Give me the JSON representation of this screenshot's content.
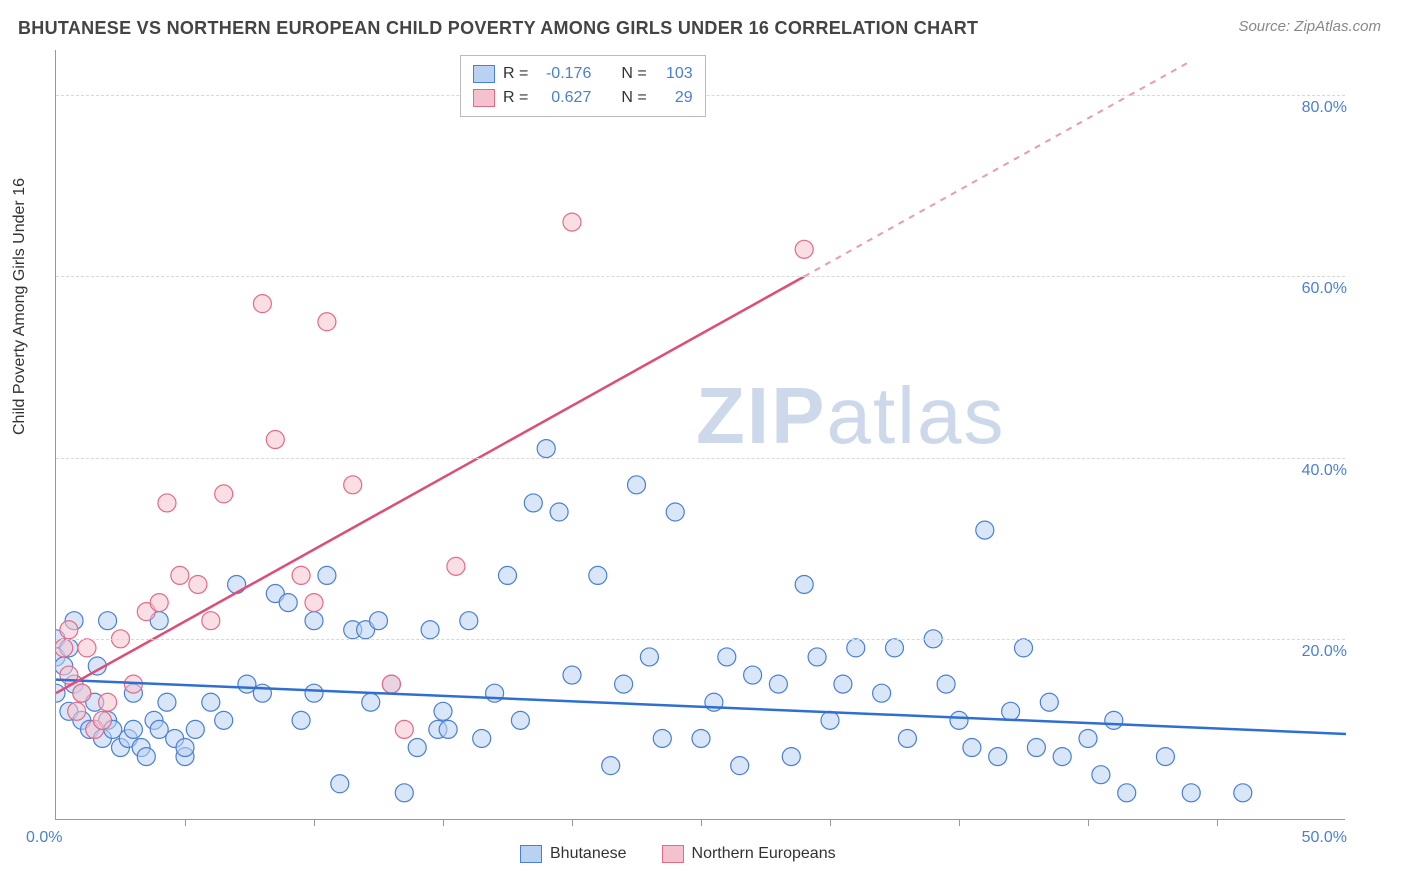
{
  "title": "BHUTANESE VS NORTHERN EUROPEAN CHILD POVERTY AMONG GIRLS UNDER 16 CORRELATION CHART",
  "source": "Source: ZipAtlas.com",
  "y_axis_title": "Child Poverty Among Girls Under 16",
  "watermark_bold": "ZIP",
  "watermark_light": "atlas",
  "chart": {
    "type": "scatter",
    "xlim": [
      0,
      50
    ],
    "ylim": [
      0,
      85
    ],
    "x_tick_labels": [
      "0.0%",
      "50.0%"
    ],
    "x_minor_ticks": [
      5,
      10,
      15,
      20,
      25,
      30,
      35,
      40,
      45
    ],
    "y_gridlines": [
      20,
      40,
      60,
      80
    ],
    "y_tick_labels": [
      "20.0%",
      "40.0%",
      "60.0%",
      "80.0%"
    ],
    "background_color": "#ffffff",
    "grid_color": "#d8d8d8",
    "axis_color": "#999999",
    "label_color": "#4a7fd6",
    "series": [
      {
        "name": "Bhutanese",
        "fill": "#b9d2f1",
        "stroke": "#4a7fd6",
        "fill_opacity": 0.55,
        "R": "-0.176",
        "N": "103",
        "trend": {
          "x1": 0,
          "y1": 15.5,
          "x2": 50,
          "y2": 9.5,
          "color": "#2f6fd0",
          "width": 2.5,
          "dash": ""
        },
        "points": [
          [
            0,
            14
          ],
          [
            0,
            18
          ],
          [
            0,
            20
          ],
          [
            0.3,
            17
          ],
          [
            0.5,
            12
          ],
          [
            0.5,
            19
          ],
          [
            0.7,
            15
          ],
          [
            0.7,
            22
          ],
          [
            1,
            11
          ],
          [
            1,
            14
          ],
          [
            1.3,
            10
          ],
          [
            1.5,
            13
          ],
          [
            1.6,
            17
          ],
          [
            1.8,
            9
          ],
          [
            2,
            11
          ],
          [
            2,
            22
          ],
          [
            2.2,
            10
          ],
          [
            2.5,
            8
          ],
          [
            2.8,
            9
          ],
          [
            3,
            10
          ],
          [
            3,
            14
          ],
          [
            3.3,
            8
          ],
          [
            3.5,
            7
          ],
          [
            3.8,
            11
          ],
          [
            4,
            10
          ],
          [
            4,
            22
          ],
          [
            4.3,
            13
          ],
          [
            4.6,
            9
          ],
          [
            5,
            7
          ],
          [
            5,
            8
          ],
          [
            5.4,
            10
          ],
          [
            6,
            13
          ],
          [
            6.5,
            11
          ],
          [
            7,
            26
          ],
          [
            7.4,
            15
          ],
          [
            8,
            14
          ],
          [
            8.5,
            25
          ],
          [
            9,
            24
          ],
          [
            9.5,
            11
          ],
          [
            10,
            14
          ],
          [
            10,
            22
          ],
          [
            10.5,
            27
          ],
          [
            11,
            4
          ],
          [
            11.5,
            21
          ],
          [
            12,
            21
          ],
          [
            12.2,
            13
          ],
          [
            12.5,
            22
          ],
          [
            13,
            15
          ],
          [
            13.5,
            3
          ],
          [
            14,
            8
          ],
          [
            14.5,
            21
          ],
          [
            14.8,
            10
          ],
          [
            15,
            12
          ],
          [
            15.2,
            10
          ],
          [
            16,
            22
          ],
          [
            16.5,
            9
          ],
          [
            17,
            14
          ],
          [
            17.5,
            27
          ],
          [
            18,
            11
          ],
          [
            18.5,
            35
          ],
          [
            19,
            41
          ],
          [
            19.5,
            34
          ],
          [
            20,
            16
          ],
          [
            21,
            27
          ],
          [
            21.5,
            6
          ],
          [
            22,
            15
          ],
          [
            22.5,
            37
          ],
          [
            23,
            18
          ],
          [
            23.5,
            9
          ],
          [
            24,
            34
          ],
          [
            25,
            9
          ],
          [
            25.5,
            13
          ],
          [
            26,
            18
          ],
          [
            26.5,
            6
          ],
          [
            27,
            16
          ],
          [
            28,
            15
          ],
          [
            28.5,
            7
          ],
          [
            29,
            26
          ],
          [
            29.5,
            18
          ],
          [
            30,
            11
          ],
          [
            30.5,
            15
          ],
          [
            31,
            19
          ],
          [
            32,
            14
          ],
          [
            32.5,
            19
          ],
          [
            33,
            9
          ],
          [
            34,
            20
          ],
          [
            34.5,
            15
          ],
          [
            35,
            11
          ],
          [
            35.5,
            8
          ],
          [
            36,
            32
          ],
          [
            36.5,
            7
          ],
          [
            37,
            12
          ],
          [
            37.5,
            19
          ],
          [
            38,
            8
          ],
          [
            38.5,
            13
          ],
          [
            39,
            7
          ],
          [
            40,
            9
          ],
          [
            40.5,
            5
          ],
          [
            41,
            11
          ],
          [
            41.5,
            3
          ],
          [
            43,
            7
          ],
          [
            44,
            3
          ],
          [
            46,
            3
          ]
        ]
      },
      {
        "name": "Northern Europeans",
        "fill": "#f4c2ce",
        "stroke": "#e36b8a",
        "fill_opacity": 0.55,
        "R": "0.627",
        "N": "29",
        "trend": {
          "x1": 0,
          "y1": 14,
          "x2": 29,
          "y2": 60,
          "color": "#e04c77",
          "width": 2.5,
          "dash": ""
        },
        "trend_ext": {
          "x1": 29,
          "y1": 60,
          "x2": 44,
          "y2": 83.8,
          "color": "#e99bb0",
          "width": 2,
          "dash": "6,6"
        },
        "points": [
          [
            0.3,
            19
          ],
          [
            0.5,
            16
          ],
          [
            0.5,
            21
          ],
          [
            0.8,
            12
          ],
          [
            1,
            14
          ],
          [
            1.2,
            19
          ],
          [
            1.5,
            10
          ],
          [
            1.8,
            11
          ],
          [
            2,
            13
          ],
          [
            2.5,
            20
          ],
          [
            3,
            15
          ],
          [
            3.5,
            23
          ],
          [
            4,
            24
          ],
          [
            4.3,
            35
          ],
          [
            4.8,
            27
          ],
          [
            5.5,
            26
          ],
          [
            6,
            22
          ],
          [
            6.5,
            36
          ],
          [
            8,
            57
          ],
          [
            8.5,
            42
          ],
          [
            9.5,
            27
          ],
          [
            10,
            24
          ],
          [
            10.5,
            55
          ],
          [
            11.5,
            37
          ],
          [
            13,
            15
          ],
          [
            13.5,
            10
          ],
          [
            15.5,
            28
          ],
          [
            20,
            66
          ],
          [
            29,
            63
          ]
        ]
      }
    ]
  },
  "legend_top": {
    "rows": [
      {
        "swatch_fill": "#b9d2f1",
        "swatch_stroke": "#4a7fd6",
        "r_label": "R =",
        "r_val": "-0.176",
        "n_label": "N =",
        "n_val": "103"
      },
      {
        "swatch_fill": "#f4c2ce",
        "swatch_stroke": "#e36b8a",
        "r_label": "R =",
        "r_val": "0.627",
        "n_label": "N =",
        "n_val": "29"
      }
    ]
  },
  "bottom_legend": [
    {
      "swatch_fill": "#b9d2f1",
      "swatch_stroke": "#4a7fd6",
      "label": "Bhutanese"
    },
    {
      "swatch_fill": "#f4c2ce",
      "swatch_stroke": "#e36b8a",
      "label": "Northern Europeans"
    }
  ]
}
